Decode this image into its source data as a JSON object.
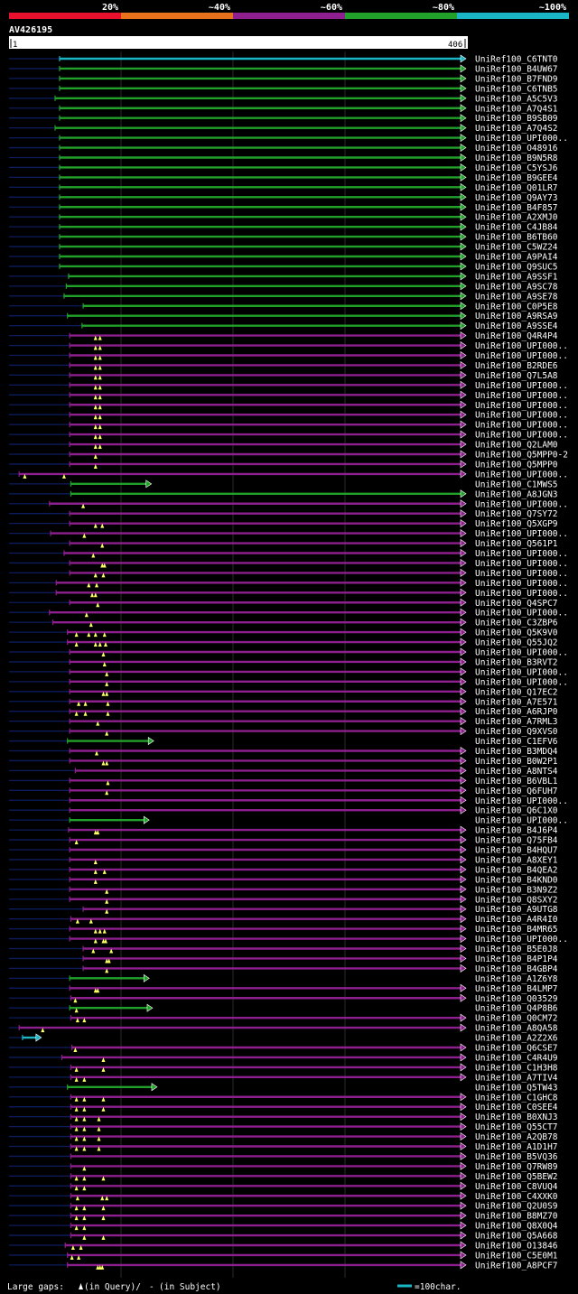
{
  "chart_data": {
    "type": "alignment-overview",
    "title": "AV426195",
    "query_length": 406,
    "scale_start_label": "1",
    "scale_end_label": "406",
    "identity_legend": [
      {
        "label": "20%",
        "color": "#e8112d"
      },
      {
        "label": "~40%",
        "color": "#e8721c"
      },
      {
        "label": "~60%",
        "color": "#8e1f8e"
      },
      {
        "label": "~80%",
        "color": "#22a12a"
      },
      {
        "label": "~100%",
        "color": "#1ab6c6"
      }
    ],
    "class_colors": {
      "c": "#1ab6c6",
      "g": "#22a12a",
      "p": "#8e1f8e"
    },
    "hits": [
      {
        "name": "UniRef100_C6TNT0",
        "c": "c",
        "s": 45,
        "gaps": []
      },
      {
        "name": "UniRef100_B4UW67",
        "c": "g",
        "s": 45,
        "gaps": []
      },
      {
        "name": "UniRef100_B7FND9",
        "c": "g",
        "s": 45,
        "gaps": []
      },
      {
        "name": "UniRef100_C6TNB5",
        "c": "g",
        "s": 45,
        "gaps": []
      },
      {
        "name": "UniRef100_A5C5V3",
        "c": "g",
        "s": 41,
        "gaps": []
      },
      {
        "name": "UniRef100_A7Q4S1",
        "c": "g",
        "s": 45,
        "gaps": []
      },
      {
        "name": "UniRef100_B9SB09",
        "c": "g",
        "s": 45,
        "gaps": []
      },
      {
        "name": "UniRef100_A7Q4S2",
        "c": "g",
        "s": 41,
        "gaps": []
      },
      {
        "name": "UniRef100_UPI000..",
        "c": "g",
        "s": 45,
        "gaps": []
      },
      {
        "name": "UniRef100_O48916",
        "c": "g",
        "s": 45,
        "gaps": []
      },
      {
        "name": "UniRef100_B9N5R8",
        "c": "g",
        "s": 45,
        "gaps": []
      },
      {
        "name": "UniRef100_C5YSJ6",
        "c": "g",
        "s": 45,
        "gaps": []
      },
      {
        "name": "UniRef100_B9GEE4",
        "c": "g",
        "s": 45,
        "gaps": []
      },
      {
        "name": "UniRef100_Q01LR7",
        "c": "g",
        "s": 45,
        "gaps": []
      },
      {
        "name": "UniRef100_Q9AY73",
        "c": "g",
        "s": 45,
        "gaps": []
      },
      {
        "name": "UniRef100_B4F857",
        "c": "g",
        "s": 45,
        "gaps": []
      },
      {
        "name": "UniRef100_A2XMJ0",
        "c": "g",
        "s": 45,
        "gaps": []
      },
      {
        "name": "UniRef100_C4JB84",
        "c": "g",
        "s": 45,
        "gaps": []
      },
      {
        "name": "UniRef100_B6TB60",
        "c": "g",
        "s": 45,
        "gaps": []
      },
      {
        "name": "UniRef100_C5WZ24",
        "c": "g",
        "s": 45,
        "gaps": []
      },
      {
        "name": "UniRef100_A9PAI4",
        "c": "g",
        "s": 45,
        "gaps": []
      },
      {
        "name": "UniRef100_Q9SUC5",
        "c": "g",
        "s": 45,
        "gaps": []
      },
      {
        "name": "UniRef100_A9SSF1",
        "c": "g",
        "s": 53,
        "gaps": []
      },
      {
        "name": "UniRef100_A9SC78",
        "c": "g",
        "s": 51,
        "gaps": []
      },
      {
        "name": "UniRef100_A9SE78",
        "c": "g",
        "s": 49,
        "gaps": []
      },
      {
        "name": "UniRef100_C0P5E8",
        "c": "g",
        "s": 66,
        "gaps": []
      },
      {
        "name": "UniRef100_A9RSA9",
        "c": "g",
        "s": 52,
        "gaps": []
      },
      {
        "name": "UniRef100_A9SSE4",
        "c": "g",
        "s": 65,
        "gaps": []
      },
      {
        "name": "UniRef100_Q4R4P4",
        "c": "p",
        "s": 54,
        "gaps": [
          77,
          81
        ]
      },
      {
        "name": "UniRef100_UPI000..",
        "c": "p",
        "s": 54,
        "gaps": [
          77,
          81
        ]
      },
      {
        "name": "UniRef100_UPI000..",
        "c": "p",
        "s": 54,
        "gaps": [
          77,
          81
        ]
      },
      {
        "name": "UniRef100_B2RDE6",
        "c": "p",
        "s": 54,
        "gaps": [
          77,
          81
        ]
      },
      {
        "name": "UniRef100_Q7L5A8",
        "c": "p",
        "s": 54,
        "gaps": [
          77,
          81
        ]
      },
      {
        "name": "UniRef100_UPI000..",
        "c": "p",
        "s": 54,
        "gaps": [
          77,
          81
        ]
      },
      {
        "name": "UniRef100_UPI000..",
        "c": "p",
        "s": 54,
        "gaps": [
          77,
          81
        ]
      },
      {
        "name": "UniRef100_UPI000..",
        "c": "p",
        "s": 54,
        "gaps": [
          77,
          81
        ]
      },
      {
        "name": "UniRef100_UPI000..",
        "c": "p",
        "s": 54,
        "gaps": [
          77,
          81
        ]
      },
      {
        "name": "UniRef100_UPI000..",
        "c": "p",
        "s": 54,
        "gaps": [
          77,
          81
        ]
      },
      {
        "name": "UniRef100_UPI000..",
        "c": "p",
        "s": 54,
        "gaps": [
          77,
          81
        ]
      },
      {
        "name": "UniRef100_Q2LAM0",
        "c": "p",
        "s": 54,
        "gaps": [
          77,
          81
        ]
      },
      {
        "name": "UniRef100_Q5MPP0-2",
        "c": "p",
        "s": 54,
        "gaps": [
          77
        ]
      },
      {
        "name": "UniRef100_Q5MPP0",
        "c": "p",
        "s": 54,
        "gaps": [
          77
        ]
      },
      {
        "name": "UniRef100_UPI000..",
        "c": "p",
        "s": 9,
        "gaps": [
          14,
          49
        ]
      },
      {
        "name": "UniRef100_C1MWS5",
        "c": "g",
        "s": 55,
        "e": 126,
        "gaps": []
      },
      {
        "name": "UniRef100_A8JGN3",
        "c": "g",
        "s": 55,
        "gaps": []
      },
      {
        "name": "UniRef100_UPI000..",
        "c": "p",
        "s": 36,
        "gaps": [
          66
        ]
      },
      {
        "name": "UniRef100_Q7SY72",
        "c": "p",
        "s": 54,
        "gaps": []
      },
      {
        "name": "UniRef100_Q5XGP9",
        "c": "p",
        "s": 54,
        "gaps": [
          77,
          83
        ]
      },
      {
        "name": "UniRef100_UPI000..",
        "c": "p",
        "s": 37,
        "gaps": [
          67
        ]
      },
      {
        "name": "UniRef100_Q561P1",
        "c": "p",
        "s": 54,
        "gaps": [
          83
        ]
      },
      {
        "name": "UniRef100_UPI000..",
        "c": "p",
        "s": 49,
        "gaps": [
          75
        ]
      },
      {
        "name": "UniRef100_UPI000..",
        "c": "p",
        "s": 54,
        "gaps": [
          83,
          85
        ]
      },
      {
        "name": "UniRef100_UPI000..",
        "c": "p",
        "s": 54,
        "gaps": [
          77,
          84
        ]
      },
      {
        "name": "UniRef100_UPI000..",
        "c": "p",
        "s": 42,
        "gaps": [
          71,
          78
        ]
      },
      {
        "name": "UniRef100_UPI000..",
        "c": "p",
        "s": 42,
        "gaps": [
          74,
          77
        ]
      },
      {
        "name": "UniRef100_Q4SPC7",
        "c": "p",
        "s": 54,
        "gaps": [
          79
        ]
      },
      {
        "name": "UniRef100_UPI000..",
        "c": "p",
        "s": 36,
        "gaps": [
          69
        ]
      },
      {
        "name": "UniRef100_C3ZBP6",
        "c": "p",
        "s": 39,
        "gaps": [
          73
        ]
      },
      {
        "name": "UniRef100_Q5K9V0",
        "c": "p",
        "s": 52,
        "gaps": [
          60,
          71,
          77,
          85
        ]
      },
      {
        "name": "UniRef100_Q55JQ2",
        "c": "p",
        "s": 52,
        "gaps": [
          60,
          77,
          81,
          86
        ]
      },
      {
        "name": "UniRef100_UPI000..",
        "c": "p",
        "s": 54,
        "gaps": [
          84
        ]
      },
      {
        "name": "UniRef100_B3RVT2",
        "c": "p",
        "s": 54,
        "gaps": [
          85
        ]
      },
      {
        "name": "UniRef100_UPI000..",
        "c": "p",
        "s": 54,
        "gaps": [
          87
        ]
      },
      {
        "name": "UniRef100_UPI000..",
        "c": "p",
        "s": 54,
        "gaps": [
          87
        ]
      },
      {
        "name": "UniRef100_Q17EC2",
        "c": "p",
        "s": 54,
        "gaps": [
          84,
          87
        ]
      },
      {
        "name": "UniRef100_A7E571",
        "c": "p",
        "s": 54,
        "gaps": [
          62,
          68,
          88
        ]
      },
      {
        "name": "UniRef100_A6RJP0",
        "c": "p",
        "s": 54,
        "gaps": [
          60,
          68,
          88
        ]
      },
      {
        "name": "UniRef100_A7RML3",
        "c": "p",
        "s": 54,
        "gaps": [
          79
        ]
      },
      {
        "name": "UniRef100_Q9XVS0",
        "c": "p",
        "s": 54,
        "gaps": [
          87
        ]
      },
      {
        "name": "UniRef100_C1EFV6",
        "c": "g",
        "s": 52,
        "e": 128,
        "gaps": []
      },
      {
        "name": "UniRef100_B3MDQ4",
        "c": "p",
        "s": 54,
        "gaps": [
          78
        ]
      },
      {
        "name": "UniRef100_B0W2P1",
        "c": "p",
        "s": 54,
        "gaps": [
          84,
          87
        ]
      },
      {
        "name": "UniRef100_A8NTS4",
        "c": "p",
        "s": 59,
        "gaps": []
      },
      {
        "name": "UniRef100_B6VBL1",
        "c": "p",
        "s": 54,
        "gaps": [
          88
        ]
      },
      {
        "name": "UniRef100_Q6FUH7",
        "c": "p",
        "s": 54,
        "gaps": [
          87
        ]
      },
      {
        "name": "UniRef100_UPI000..",
        "c": "p",
        "s": 54,
        "gaps": []
      },
      {
        "name": "UniRef100_Q6C1X0",
        "c": "p",
        "s": 54,
        "gaps": []
      },
      {
        "name": "UniRef100_UPI000..",
        "c": "g",
        "s": 54,
        "e": 124,
        "gaps": []
      },
      {
        "name": "UniRef100_B4J6P4",
        "c": "p",
        "s": 53,
        "gaps": [
          77,
          79
        ]
      },
      {
        "name": "UniRef100_Q75FB4",
        "c": "p",
        "s": 54,
        "gaps": [
          60
        ]
      },
      {
        "name": "UniRef100_B4HQU7",
        "c": "p",
        "s": 54,
        "gaps": []
      },
      {
        "name": "UniRef100_A8XEY1",
        "c": "p",
        "s": 54,
        "gaps": [
          77
        ]
      },
      {
        "name": "UniRef100_B4QEA2",
        "c": "p",
        "s": 54,
        "gaps": [
          77,
          85
        ]
      },
      {
        "name": "UniRef100_B4KND0",
        "c": "p",
        "s": 54,
        "gaps": [
          77
        ]
      },
      {
        "name": "UniRef100_B3N9Z2",
        "c": "p",
        "s": 54,
        "gaps": [
          87
        ]
      },
      {
        "name": "UniRef100_Q8SXY2",
        "c": "p",
        "s": 54,
        "gaps": [
          87
        ]
      },
      {
        "name": "UniRef100_A9UTG8",
        "c": "p",
        "s": 66,
        "gaps": [
          87
        ]
      },
      {
        "name": "UniRef100_A4R4I0",
        "c": "p",
        "s": 55,
        "gaps": [
          61,
          73
        ]
      },
      {
        "name": "UniRef100_B4MR65",
        "c": "p",
        "s": 54,
        "gaps": [
          77,
          81,
          85
        ]
      },
      {
        "name": "UniRef100_UPI000..",
        "c": "p",
        "s": 54,
        "gaps": [
          77,
          84,
          86
        ]
      },
      {
        "name": "UniRef100_B5E0J8",
        "c": "p",
        "s": 66,
        "gaps": [
          75,
          91
        ]
      },
      {
        "name": "UniRef100_B4P1P4",
        "c": "p",
        "s": 66,
        "gaps": [
          87,
          89
        ]
      },
      {
        "name": "UniRef100_B4GBP4",
        "c": "p",
        "s": 66,
        "gaps": [
          87
        ]
      },
      {
        "name": "UniRef100_A1Z6Y8",
        "c": "g",
        "s": 54,
        "e": 124,
        "gaps": []
      },
      {
        "name": "UniRef100_B4LMP7",
        "c": "p",
        "s": 54,
        "gaps": [
          77,
          79
        ]
      },
      {
        "name": "UniRef100_Q03529",
        "c": "p",
        "s": 55,
        "gaps": [
          59
        ]
      },
      {
        "name": "UniRef100_Q4P8B6",
        "c": "g",
        "s": 54,
        "e": 127,
        "gaps": [
          60
        ]
      },
      {
        "name": "UniRef100_Q0CM72",
        "c": "p",
        "s": 55,
        "gaps": [
          61,
          67
        ]
      },
      {
        "name": "UniRef100_A8QA58",
        "c": "p",
        "s": 9,
        "gaps": [
          30
        ]
      },
      {
        "name": "UniRef100_A2Z2X6",
        "c": "c",
        "s": 12,
        "e": 28,
        "gaps": []
      },
      {
        "name": "UniRef100_Q6CSE7",
        "c": "p",
        "s": 56,
        "gaps": [
          59
        ]
      },
      {
        "name": "UniRef100_C4R4U9",
        "c": "p",
        "s": 47,
        "gaps": [
          84
        ]
      },
      {
        "name": "UniRef100_C1H3H8",
        "c": "p",
        "s": 55,
        "gaps": [
          60,
          84
        ]
      },
      {
        "name": "UniRef100_A7TIV4",
        "c": "p",
        "s": 55,
        "gaps": [
          60,
          67
        ]
      },
      {
        "name": "UniRef100_Q5TW43",
        "c": "g",
        "s": 52,
        "e": 131,
        "gaps": []
      },
      {
        "name": "UniRef100_C1GHC8",
        "c": "p",
        "s": 55,
        "gaps": [
          60,
          67,
          84
        ]
      },
      {
        "name": "UniRef100_C0SEE4",
        "c": "p",
        "s": 55,
        "gaps": [
          60,
          67,
          84
        ]
      },
      {
        "name": "UniRef100_B0XNJ3",
        "c": "p",
        "s": 55,
        "gaps": [
          60,
          67,
          80
        ]
      },
      {
        "name": "UniRef100_Q55CT7",
        "c": "p",
        "s": 55,
        "gaps": [
          60,
          67,
          80
        ]
      },
      {
        "name": "UniRef100_A2QB78",
        "c": "p",
        "s": 55,
        "gaps": [
          60,
          67,
          80
        ]
      },
      {
        "name": "UniRef100_A1D1H7",
        "c": "p",
        "s": 55,
        "gaps": [
          60,
          67,
          80
        ]
      },
      {
        "name": "UniRef100_B5VQ36",
        "c": "p",
        "s": 55,
        "gaps": []
      },
      {
        "name": "UniRef100_Q7RW89",
        "c": "p",
        "s": 55,
        "gaps": [
          67
        ]
      },
      {
        "name": "UniRef100_Q5BEW2",
        "c": "p",
        "s": 55,
        "gaps": [
          60,
          67,
          84
        ]
      },
      {
        "name": "UniRef100_C8VUQ4",
        "c": "p",
        "s": 55,
        "gaps": [
          60,
          67
        ]
      },
      {
        "name": "UniRef100_C4XXK0",
        "c": "p",
        "s": 55,
        "gaps": [
          61,
          83,
          87
        ]
      },
      {
        "name": "UniRef100_Q2U0S9",
        "c": "p",
        "s": 55,
        "gaps": [
          60,
          67,
          84
        ]
      },
      {
        "name": "UniRef100_B8MZ70",
        "c": "p",
        "s": 55,
        "gaps": [
          60,
          67,
          84
        ]
      },
      {
        "name": "UniRef100_Q8X0Q4",
        "c": "p",
        "s": 55,
        "gaps": [
          60,
          67
        ]
      },
      {
        "name": "UniRef100_Q5A668",
        "c": "p",
        "s": 55,
        "gaps": [
          67,
          84
        ]
      },
      {
        "name": "UniRef100_O13846",
        "c": "p",
        "s": 50,
        "gaps": [
          57,
          64
        ]
      },
      {
        "name": "UniRef100_C5E0M1",
        "c": "p",
        "s": 52,
        "gaps": [
          56,
          62
        ]
      },
      {
        "name": "UniRef100_A8PCF7",
        "c": "p",
        "s": 52,
        "gaps": [
          79,
          81,
          83
        ]
      }
    ],
    "footer": {
      "gaps_prefix": "Large gaps:",
      "gaps_query": "(in Query)/",
      "gaps_dash": "-",
      "gaps_subject": "(in Subject)",
      "scale_key": "=100char."
    }
  }
}
